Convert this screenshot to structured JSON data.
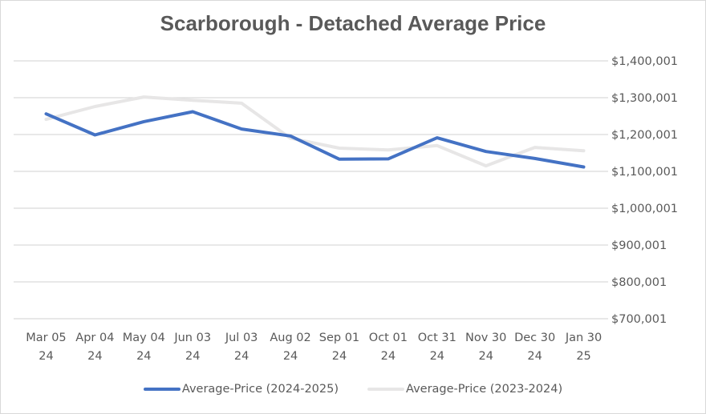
{
  "chart_data": {
    "type": "line",
    "title": "Scarborough - Detached Average Price",
    "xlabel": "",
    "ylabel": "",
    "categories": [
      [
        "Mar 05",
        "24"
      ],
      [
        "Apr 04",
        "24"
      ],
      [
        "May 04",
        "24"
      ],
      [
        "Jun 03",
        "24"
      ],
      [
        "Jul 03",
        "24"
      ],
      [
        "Aug 02",
        "24"
      ],
      [
        "Sep 01",
        "24"
      ],
      [
        "Oct 01",
        "24"
      ],
      [
        "Oct 31",
        "24"
      ],
      [
        "Nov 30",
        "24"
      ],
      [
        "Dec 30",
        "24"
      ],
      [
        "Jan 30",
        "25"
      ]
    ],
    "ylim": [
      700001,
      1400001
    ],
    "yticks": [
      1400001,
      1300001,
      1200001,
      1100001,
      1000001,
      900001,
      800001,
      700001
    ],
    "ytick_labels": [
      "$1,400,001",
      "$1,300,001",
      "$1,200,001",
      "$1,100,001",
      "$1,000,001",
      "$900,001",
      "$800,001",
      "$700,001"
    ],
    "y_axis_position": "right",
    "grid": true,
    "legend_position": "bottom",
    "series": [
      {
        "name": "Average-Price (2024-2025)",
        "color": "#4472c4",
        "values": [
          1256000,
          1199000,
          1235000,
          1262000,
          1215000,
          1196000,
          1133000,
          1134000,
          1191000,
          1154000,
          1135000,
          1112000
        ]
      },
      {
        "name": "Average-Price (2023-2024)",
        "color": "#e7e6e6",
        "values": [
          1241000,
          1276000,
          1302000,
          1293000,
          1285000,
          1190000,
          1163000,
          1158000,
          1170000,
          1115000,
          1165000,
          1156000
        ]
      }
    ]
  }
}
